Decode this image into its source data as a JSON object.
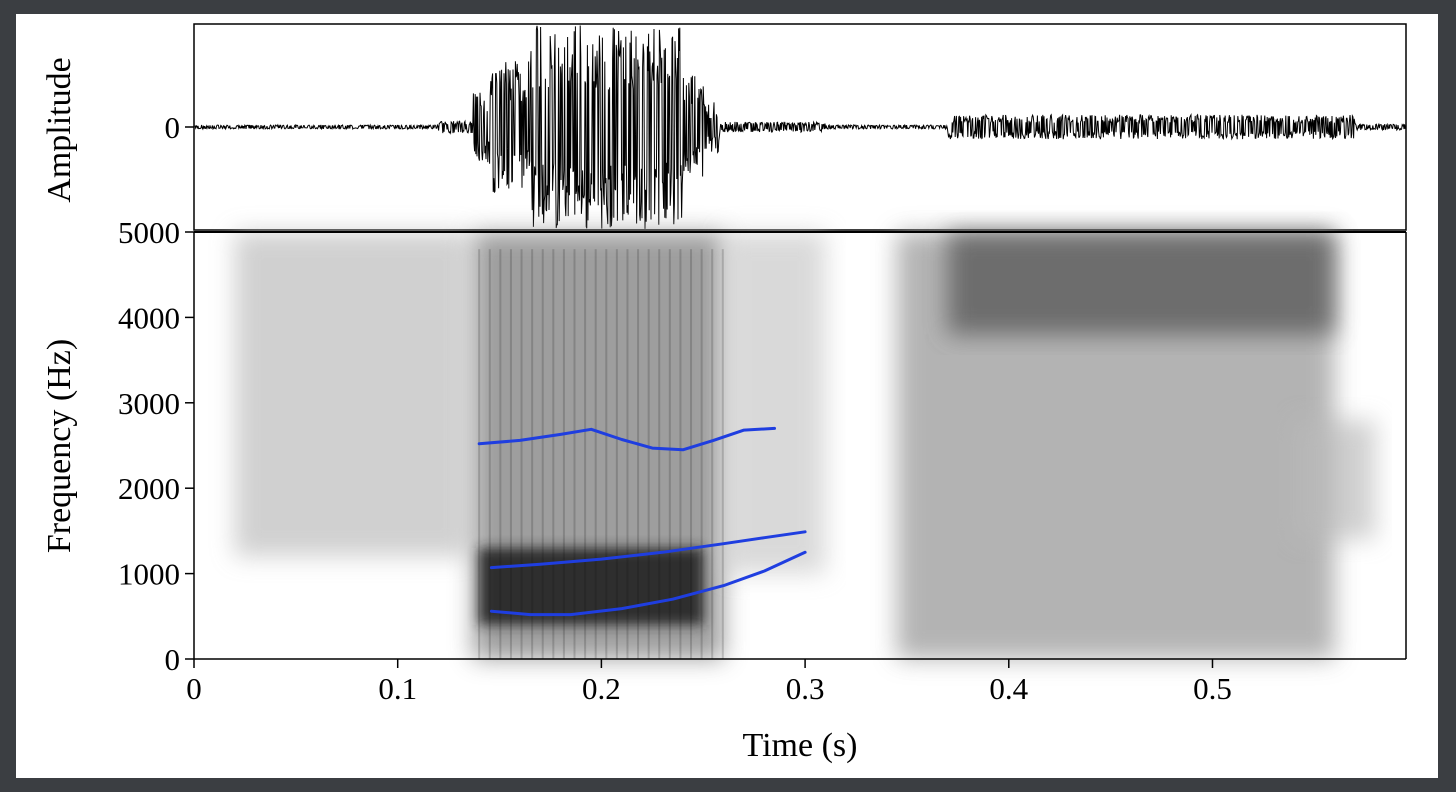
{
  "chart_data": [
    {
      "type": "line",
      "panel": "waveform",
      "ylabel": "Amplitude",
      "yticks": [
        {
          "value": 0,
          "label": "0"
        }
      ],
      "xlim": [
        0,
        0.595
      ],
      "ylim": [
        -1,
        1
      ],
      "grid": false,
      "segments": [
        {
          "start": 0.0,
          "end": 0.12,
          "amplitude": 0.02
        },
        {
          "start": 0.12,
          "end": 0.137,
          "amplitude": 0.06
        },
        {
          "start": 0.137,
          "end": 0.145,
          "amplitude": 0.35
        },
        {
          "start": 0.145,
          "end": 0.165,
          "amplitude": 0.65
        },
        {
          "start": 0.165,
          "end": 0.24,
          "amplitude": 1.0
        },
        {
          "start": 0.24,
          "end": 0.25,
          "amplitude": 0.55
        },
        {
          "start": 0.25,
          "end": 0.258,
          "amplitude": 0.25
        },
        {
          "start": 0.258,
          "end": 0.31,
          "amplitude": 0.05
        },
        {
          "start": 0.31,
          "end": 0.37,
          "amplitude": 0.02
        },
        {
          "start": 0.37,
          "end": 0.57,
          "amplitude": 0.12
        },
        {
          "start": 0.57,
          "end": 0.595,
          "amplitude": 0.03
        }
      ]
    },
    {
      "type": "heatmap",
      "panel": "spectrogram",
      "xlabel": "Time (s)",
      "ylabel": "Frequency (Hz)",
      "xlim": [
        0,
        0.595
      ],
      "ylim": [
        0,
        5000
      ],
      "xticks": [
        {
          "value": 0,
          "label": "0"
        },
        {
          "value": 0.1,
          "label": "0.1"
        },
        {
          "value": 0.2,
          "label": "0.2"
        },
        {
          "value": 0.3,
          "label": "0.3"
        },
        {
          "value": 0.4,
          "label": "0.4"
        },
        {
          "value": 0.5,
          "label": "0.5"
        }
      ],
      "yticks": [
        {
          "value": 0,
          "label": "0"
        },
        {
          "value": 1000,
          "label": "1000"
        },
        {
          "value": 2000,
          "label": "2000"
        },
        {
          "value": 3000,
          "label": "3000"
        },
        {
          "value": 4000,
          "label": "4000"
        },
        {
          "value": 5000,
          "label": "5000"
        }
      ],
      "grid": false,
      "colormap": "grayscale",
      "regions": [
        {
          "t0": 0.02,
          "t1": 0.135,
          "f0": 1200,
          "f1": 5000,
          "intensity": 0.3
        },
        {
          "t0": 0.137,
          "t1": 0.26,
          "f0": 0,
          "f1": 5000,
          "intensity": 0.55
        },
        {
          "t0": 0.14,
          "t1": 0.25,
          "f0": 400,
          "f1": 1300,
          "intensity": 0.95
        },
        {
          "t0": 0.26,
          "t1": 0.31,
          "f0": 1000,
          "f1": 5000,
          "intensity": 0.25
        },
        {
          "t0": 0.345,
          "t1": 0.56,
          "f0": 0,
          "f1": 5000,
          "intensity": 0.45
        },
        {
          "t0": 0.37,
          "t1": 0.56,
          "f0": 3800,
          "f1": 5000,
          "intensity": 0.7
        },
        {
          "t0": 0.54,
          "t1": 0.58,
          "f0": 1400,
          "f1": 2800,
          "intensity": 0.3
        }
      ],
      "series": [
        {
          "color": "#1f3ee0",
          "x": [
            0.14,
            0.16,
            0.18,
            0.195,
            0.21,
            0.225,
            0.24,
            0.255,
            0.27,
            0.285
          ],
          "y": [
            2520,
            2560,
            2630,
            2690,
            2570,
            2470,
            2450,
            2560,
            2680,
            2700
          ]
        },
        {
          "color": "#1f3ee0",
          "x": [
            0.146,
            0.17,
            0.2,
            0.23,
            0.26,
            0.28,
            0.3
          ],
          "y": [
            1070,
            1110,
            1170,
            1250,
            1350,
            1420,
            1490
          ]
        },
        {
          "color": "#1f3ee0",
          "x": [
            0.146,
            0.165,
            0.185,
            0.21,
            0.235,
            0.26,
            0.28,
            0.3
          ],
          "y": [
            560,
            520,
            520,
            590,
            700,
            860,
            1030,
            1250
          ]
        }
      ]
    }
  ]
}
